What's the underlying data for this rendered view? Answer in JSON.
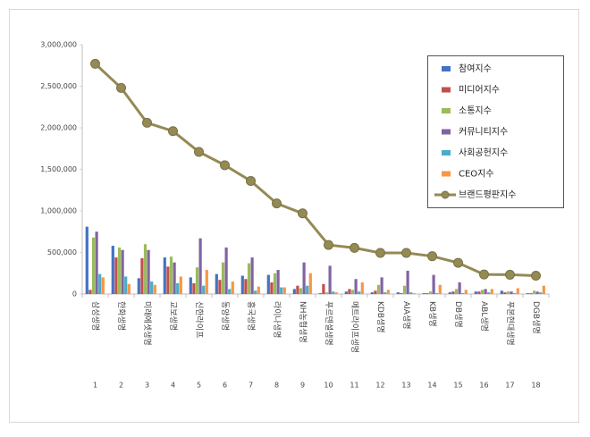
{
  "chart_data": {
    "type": "bar",
    "categories": [
      "삼성생명",
      "한화생명",
      "미래에셋생명",
      "교보생명",
      "신한라이프",
      "동양생명",
      "흥국생명",
      "라이나생명",
      "NH농협생명",
      "푸르덴셜생명",
      "메트라이프생명",
      "KDB생명",
      "AIA생명",
      "KB생명",
      "DB생명",
      "ABL생명",
      "푸본현대생명",
      "DGB생명"
    ],
    "ranks": [
      1,
      2,
      3,
      4,
      5,
      6,
      7,
      8,
      9,
      10,
      11,
      12,
      13,
      14,
      15,
      16,
      17,
      18
    ],
    "series": [
      {
        "name": "참여지수",
        "color": "#4472c4",
        "values": [
          810000,
          580000,
          190000,
          440000,
          200000,
          240000,
          220000,
          230000,
          60000,
          10000,
          30000,
          20000,
          20000,
          10000,
          20000,
          30000,
          40000,
          10000
        ]
      },
      {
        "name": "미디어지수",
        "color": "#c0504d",
        "values": [
          50000,
          440000,
          430000,
          330000,
          130000,
          170000,
          180000,
          140000,
          100000,
          120000,
          60000,
          40000,
          10000,
          10000,
          30000,
          30000,
          20000,
          10000
        ]
      },
      {
        "name": "소통지수",
        "color": "#9bbb59",
        "values": [
          680000,
          560000,
          600000,
          450000,
          320000,
          380000,
          370000,
          250000,
          70000,
          20000,
          50000,
          110000,
          100000,
          30000,
          60000,
          50000,
          30000,
          40000
        ]
      },
      {
        "name": "커뮤니티지수",
        "color": "#8064a2",
        "values": [
          750000,
          530000,
          530000,
          380000,
          670000,
          560000,
          440000,
          290000,
          380000,
          340000,
          180000,
          200000,
          280000,
          230000,
          140000,
          60000,
          30000,
          30000
        ]
      },
      {
        "name": "사회공헌지수",
        "color": "#4bacc6",
        "values": [
          240000,
          210000,
          150000,
          130000,
          100000,
          60000,
          40000,
          80000,
          100000,
          30000,
          30000,
          20000,
          20000,
          10000,
          10000,
          20000,
          10000,
          20000
        ]
      },
      {
        "name": "CEO지수",
        "color": "#f79646",
        "values": [
          200000,
          120000,
          110000,
          210000,
          290000,
          150000,
          90000,
          80000,
          250000,
          20000,
          140000,
          50000,
          10000,
          110000,
          50000,
          60000,
          70000,
          100000
        ]
      },
      {
        "name": "브랜드평판지수",
        "color": "#948a54",
        "type": "line",
        "values": [
          2770000,
          2480000,
          2060000,
          1960000,
          1710000,
          1550000,
          1360000,
          1090000,
          970000,
          590000,
          555000,
          495000,
          495000,
          455000,
          375000,
          235000,
          232000,
          220000
        ]
      }
    ],
    "ylim": [
      0,
      3000000
    ],
    "yticks": [
      0,
      {
        "value": 500000,
        "label": "500,000"
      },
      {
        "value": 1000000,
        "label": "1,000,000"
      },
      {
        "value": 1500000,
        "label": "1,500,000"
      },
      {
        "value": 2000000,
        "label": "2,000,000"
      },
      {
        "value": 2500000,
        "label": "2,500,000"
      },
      {
        "value": 3000000,
        "label": "3,000,000"
      }
    ],
    "legend": "upper-right"
  }
}
